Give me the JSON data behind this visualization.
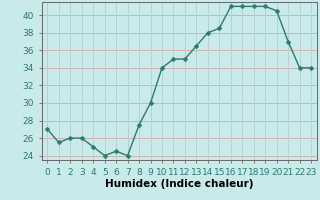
{
  "x": [
    0,
    1,
    2,
    3,
    4,
    5,
    6,
    7,
    8,
    9,
    10,
    11,
    12,
    13,
    14,
    15,
    16,
    17,
    18,
    19,
    20,
    21,
    22,
    23
  ],
  "y": [
    27,
    25.5,
    26,
    26,
    25,
    24,
    24.5,
    24,
    27.5,
    30,
    34,
    35,
    35,
    36.5,
    38,
    38.5,
    41,
    41,
    41,
    41,
    40.5,
    37,
    34,
    34
  ],
  "line_color": "#2d7a6e",
  "marker": "D",
  "marker_size": 2.5,
  "bg_color": "#c8eaea",
  "grid_color_h": "#d8b0b0",
  "grid_color_v": "#b8d0d0",
  "xlabel": "Humidex (Indice chaleur)",
  "ylim": [
    23.5,
    41.5
  ],
  "xlim": [
    -0.5,
    23.5
  ],
  "yticks": [
    24,
    26,
    28,
    30,
    32,
    34,
    36,
    38,
    40
  ],
  "xtick_labels": [
    "0",
    "1",
    "2",
    "3",
    "4",
    "5",
    "6",
    "7",
    "8",
    "9",
    "10",
    "11",
    "12",
    "13",
    "14",
    "15",
    "16",
    "17",
    "18",
    "19",
    "20",
    "21",
    "22",
    "23"
  ],
  "tick_fontsize": 6.5,
  "xlabel_fontsize": 7.5,
  "spine_color": "#666666",
  "tick_color": "#2d7a6e"
}
